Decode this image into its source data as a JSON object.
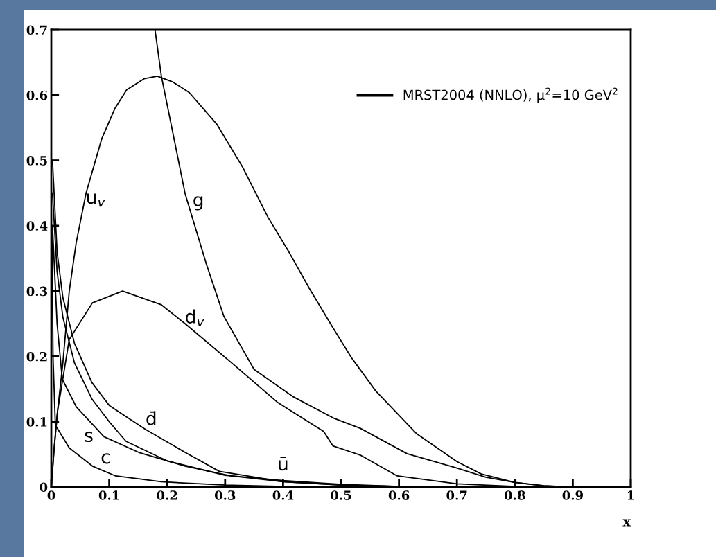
{
  "chart_data": {
    "type": "line",
    "xlabel": "x",
    "xlim": [
      0,
      1
    ],
    "ylim": [
      0,
      0.7
    ],
    "xticks": [
      0,
      0.1,
      0.2,
      0.3,
      0.4,
      0.5,
      0.6,
      0.7,
      0.8,
      0.9,
      1
    ],
    "yticks": [
      0,
      0.1,
      0.2,
      0.3,
      0.4,
      0.5,
      0.6,
      0.7
    ],
    "series": [
      {
        "name": "u$_{v}$",
        "color": "#000000",
        "x": [
          0,
          0.005,
          0.01,
          0.02,
          0.031,
          0.043,
          0.06,
          0.087,
          0.11,
          0.13,
          0.16,
          0.183,
          0.21,
          0.238,
          0.286,
          0.33,
          0.374,
          0.41,
          0.446,
          0.486,
          0.518,
          0.56,
          0.6,
          0.63,
          0.7,
          0.742,
          0.8,
          0.85,
          0.9
        ],
        "values": [
          0,
          0.06,
          0.11,
          0.19,
          0.3,
          0.374,
          0.45,
          0.533,
          0.58,
          0.608,
          0.625,
          0.629,
          0.62,
          0.604,
          0.555,
          0.49,
          0.413,
          0.36,
          0.303,
          0.244,
          0.198,
          0.147,
          0.11,
          0.082,
          0.039,
          0.02,
          0.007,
          0.002,
          0
        ]
      },
      {
        "name": "g",
        "color": "#000000",
        "x": [
          0.179,
          0.19,
          0.231,
          0.267,
          0.298,
          0.35,
          0.418,
          0.486,
          0.533,
          0.614,
          0.7,
          0.75,
          0.8,
          0.85,
          0.9
        ],
        "values": [
          0.7,
          0.629,
          0.449,
          0.343,
          0.261,
          0.18,
          0.138,
          0.106,
          0.09,
          0.051,
          0.029,
          0.015,
          0.007,
          0.002,
          0
        ]
      },
      {
        "name": "d$_{v}$",
        "color": "#000000",
        "x": [
          0,
          0.005,
          0.011,
          0.031,
          0.071,
          0.123,
          0.19,
          0.231,
          0.31,
          0.39,
          0.47,
          0.486,
          0.533,
          0.597,
          0.7,
          0.8,
          0.85
        ],
        "values": [
          0,
          0.06,
          0.117,
          0.226,
          0.282,
          0.3,
          0.279,
          0.25,
          0.191,
          0.13,
          0.085,
          0.063,
          0.049,
          0.017,
          0.005,
          0.001,
          0
        ]
      },
      {
        "name": "d̄",
        "color": "#000000",
        "x": [
          0.002,
          0.01,
          0.02,
          0.04,
          0.07,
          0.1,
          0.127,
          0.163,
          0.231,
          0.29,
          0.4,
          0.5,
          0.6,
          0.7
        ],
        "values": [
          0.5,
          0.36,
          0.29,
          0.22,
          0.16,
          0.125,
          0.109,
          0.088,
          0.053,
          0.024,
          0.008,
          0.003,
          0.001,
          0
        ]
      },
      {
        "name": "ū",
        "color": "#000000",
        "x": [
          0.002,
          0.01,
          0.02,
          0.04,
          0.07,
          0.1,
          0.129,
          0.2,
          0.3,
          0.4,
          0.5,
          0.6,
          0.7
        ],
        "values": [
          0.45,
          0.33,
          0.26,
          0.19,
          0.135,
          0.1,
          0.07,
          0.04,
          0.018,
          0.01,
          0.004,
          0.001,
          0
        ]
      },
      {
        "name": "s",
        "color": "#000000",
        "x": [
          0.002,
          0.01,
          0.019,
          0.043,
          0.091,
          0.151,
          0.231,
          0.31,
          0.4,
          0.5,
          0.6,
          0.7
        ],
        "values": [
          0.4,
          0.25,
          0.165,
          0.123,
          0.077,
          0.053,
          0.032,
          0.017,
          0.008,
          0.003,
          0.001,
          0
        ]
      },
      {
        "name": "c",
        "color": "#000000",
        "x": [
          0.001,
          0.003,
          0.007,
          0.031,
          0.071,
          0.111,
          0.19,
          0.3,
          0.4,
          0.5
        ],
        "values": [
          0.4,
          0.2,
          0.095,
          0.06,
          0.032,
          0.017,
          0.008,
          0.003,
          0.001,
          0
        ]
      }
    ],
    "annotations": [
      "MRST2004 (NNLO), μ$^{2}$=10 GeV$^{2}$"
    ]
  }
}
